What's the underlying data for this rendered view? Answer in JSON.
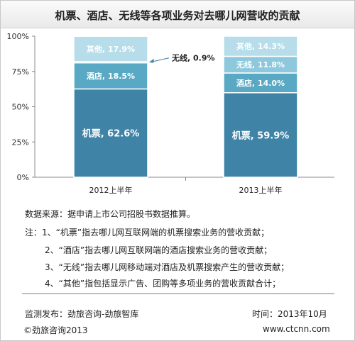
{
  "title": "机票、酒店、无线等各项业务对去哪儿网营收的贡献",
  "chart_data": {
    "type": "bar",
    "stacked": true,
    "percent": true,
    "categories": [
      "2012上半年",
      "2013上半年"
    ],
    "series": [
      {
        "name": "机票",
        "values": [
          62.6,
          59.9
        ],
        "labels": [
          "机票, 62.6%",
          "机票, 59.9%"
        ],
        "color": "#3f83a6",
        "text_color": "#ffffff"
      },
      {
        "name": "酒店",
        "values": [
          18.5,
          14.0
        ],
        "labels": [
          "酒店, 18.5%",
          "酒店, 14.0%"
        ],
        "color": "#5aa9c4",
        "text_color": "#ffffff"
      },
      {
        "name": "无线",
        "values": [
          0.9,
          11.8
        ],
        "labels": [
          "无线, 0.9%",
          "无线, 11.8%"
        ],
        "color": "#8dc8dc",
        "text_color": "#ffffff"
      },
      {
        "name": "其他",
        "values": [
          17.9,
          14.3
        ],
        "labels": [
          "其他, 17.9%",
          "其他, 14.3%"
        ],
        "color": "#b6dde9",
        "text_color": "#ffffff"
      }
    ],
    "y_ticks": [
      "0%",
      "25%",
      "50%",
      "75%",
      "100%"
    ],
    "ylim": [
      0,
      100
    ],
    "callout": {
      "series": "无线",
      "category": "2012上半年",
      "text": "无线, 0.9%"
    },
    "grid": false
  },
  "notes": {
    "source": "数据来源：据申请上市公司招股书数据推算。",
    "note1": "注：1、“机票”指去哪儿网互联网端的机票搜索业务的营收贡献；",
    "note2": "2、“酒店”指去哪儿网互联网端的酒店搜索业务的营收贡献；",
    "note3": "3、“无线”指去哪儿网移动端对酒店及机票搜索产生的营收贡献；",
    "note4": "4、“其他”指包括显示广告、团购等多项业务的营收贡献合计；"
  },
  "footer": {
    "publisher": "监测发布：劲旅咨询-劲旅智库",
    "time": "时间：2013年10月",
    "copyright": "©劲旅咨询2013",
    "website": "www.ctcnn.com"
  }
}
